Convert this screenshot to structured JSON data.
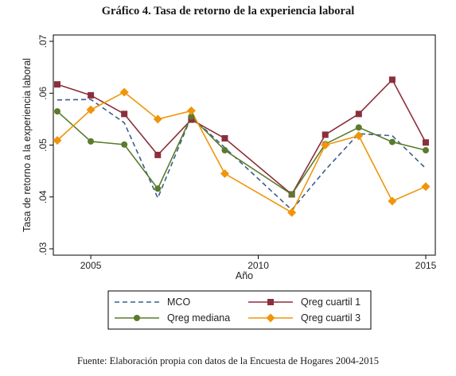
{
  "title": "Gráfico 4. Tasa de retorno de la experiencia laboral",
  "source": "Fuente: Elaboración propia con datos de la Encuesta de Hogares 2004-2015",
  "chart_data": {
    "type": "line",
    "xlabel": "Año",
    "ylabel": "Tasa de retorno a la experiencia laboral",
    "xlim": [
      2004,
      2015
    ],
    "ylim": [
      0.03,
      0.07
    ],
    "xticks": [
      2005,
      2010,
      2015
    ],
    "yticks": [
      0.03,
      0.04,
      0.05,
      0.06,
      0.07
    ],
    "ytick_labels": [
      ".03",
      ".04",
      ".05",
      ".06",
      ".07"
    ],
    "grid": false,
    "legend_position": "bottom",
    "x": [
      2004,
      2005,
      2006,
      2007,
      2008,
      2009,
      2010,
      2011,
      2012,
      2013,
      2014,
      2015
    ],
    "series": [
      {
        "name": "MCO",
        "color": "#3a5f8a",
        "style": "dashed",
        "marker": "none",
        "values": [
          0.0587,
          0.0588,
          0.0543,
          0.0398,
          0.0555,
          0.0495,
          null,
          0.0375,
          0.0452,
          0.0522,
          0.0518,
          0.0455
        ]
      },
      {
        "name": "Qreg cuartil 1",
        "color": "#8b2f3d",
        "style": "solid",
        "marker": "square",
        "values": [
          0.0617,
          0.0596,
          0.056,
          0.0481,
          0.0549,
          0.0513,
          null,
          0.0405,
          0.052,
          0.056,
          0.0626,
          0.0505
        ]
      },
      {
        "name": "Qreg mediana",
        "color": "#5b7b2c",
        "style": "solid",
        "marker": "circle",
        "values": [
          0.0565,
          0.0507,
          0.0501,
          0.0416,
          0.0555,
          0.049,
          null,
          0.0405,
          0.0502,
          0.0534,
          0.0506,
          0.049
        ]
      },
      {
        "name": "Qreg cuartil 3",
        "color": "#f0950a",
        "style": "solid",
        "marker": "diamond",
        "values": [
          0.0509,
          0.0568,
          0.0602,
          0.055,
          0.0566,
          0.0445,
          null,
          0.037,
          0.05,
          0.0518,
          0.0392,
          0.042
        ]
      }
    ]
  }
}
